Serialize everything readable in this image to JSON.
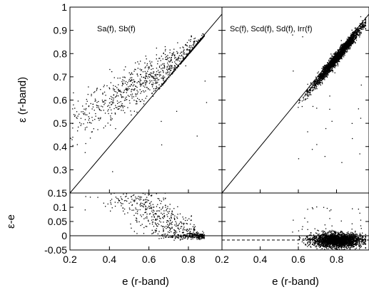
{
  "chart_data": [
    {
      "type": "scatter",
      "panel": "top-left",
      "annotation": "Sa(f), Sb(f)",
      "xlabel": "",
      "ylabel": "ε (r-band)",
      "xlim": [
        0.2,
        0.97
      ],
      "ylim": [
        0.2,
        1.0
      ],
      "xticks": [],
      "yticks": [
        "0.3",
        "0.4",
        "0.5",
        "0.6",
        "0.7",
        "0.8",
        "0.9",
        "1"
      ],
      "yticks_values": [
        0.3,
        0.4,
        0.5,
        0.6,
        0.7,
        0.8,
        0.9,
        1.0
      ],
      "reference_line": "y = x",
      "cloud": {
        "x_range": [
          0.2,
          0.88
        ],
        "trend": "points lie above the y=x line at low e and converge to it near e≈0.8",
        "y_at_x_low": 0.5,
        "y_at_x_high": 0.83,
        "spread": 0.06,
        "count": 900
      }
    },
    {
      "type": "scatter",
      "panel": "top-right",
      "annotation": "Sc(f), Scd(f), Sd(f), Irr(f)",
      "xlabel": "",
      "ylabel": "",
      "xlim": [
        0.2,
        0.97
      ],
      "ylim": [
        0.2,
        1.0
      ],
      "reference_line": "y = x",
      "cloud": {
        "x_range": [
          0.55,
          0.95
        ],
        "trend": "points follow the y=x line tightly, densest between e=0.7 and e=0.9",
        "spread": 0.02,
        "count": 2500
      }
    },
    {
      "type": "scatter",
      "panel": "bottom-left",
      "xlabel": "e (r-band)",
      "ylabel": "ε-e",
      "xlim": [
        0.2,
        0.97
      ],
      "ylim": [
        -0.05,
        0.15
      ],
      "xticks": [
        "0.2",
        "0.4",
        "0.6",
        "0.8"
      ],
      "xticks_values": [
        0.2,
        0.4,
        0.6,
        0.8
      ],
      "yticks": [
        "-0.05",
        "0",
        "0.05",
        "0.1",
        "0.15"
      ],
      "yticks_values": [
        -0.05,
        0.0,
        0.05,
        0.1,
        0.15
      ],
      "reference_line": "y = 0",
      "cloud": {
        "x_range": [
          0.22,
          0.88
        ],
        "trend": "residuals decrease from about 0.13 at e=0.25 to about 0 at e=0.85",
        "y_at_x_low": 0.13,
        "y_at_x_high": -0.01,
        "spread": 0.025,
        "count": 900
      }
    },
    {
      "type": "scatter",
      "panel": "bottom-right",
      "xlabel": "e (r-band)",
      "ylabel": "",
      "xlim": [
        0.2,
        0.97
      ],
      "ylim": [
        -0.05,
        0.15
      ],
      "xticks": [
        "0.2",
        "0.4",
        "0.6",
        "0.8"
      ],
      "xticks_values": [
        0.2,
        0.4,
        0.6,
        0.8
      ],
      "reference_line": "y = 0",
      "secondary_line": {
        "style": "dashed",
        "y": -0.015
      },
      "cloud": {
        "x_range": [
          0.55,
          0.95
        ],
        "trend": "residuals clustered just below zero, densest between e=0.7 and e=0.9",
        "y_center": -0.015,
        "spread": 0.012,
        "count": 2500
      }
    }
  ]
}
